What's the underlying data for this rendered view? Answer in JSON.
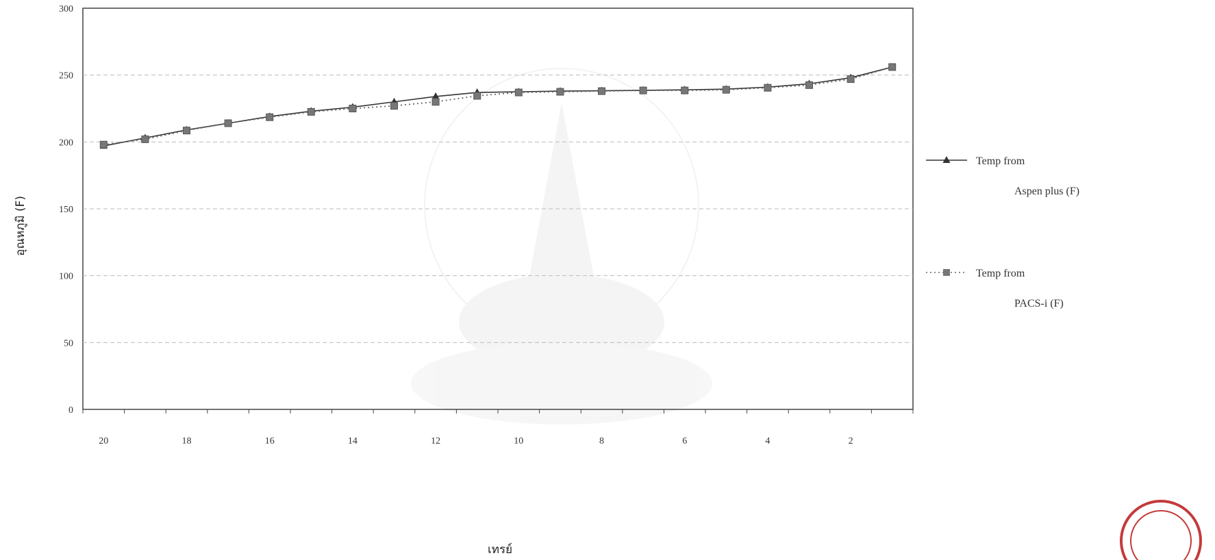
{
  "chart_data": {
    "type": "line",
    "xlabel": "เทรย์",
    "ylabel": "อุณหภูมิ (F)",
    "ylim": [
      0,
      300
    ],
    "yticks": [
      0,
      50,
      100,
      150,
      200,
      250,
      300
    ],
    "xticks": [
      20,
      18,
      16,
      14,
      12,
      10,
      8,
      6,
      4,
      2
    ],
    "x_reversed": true,
    "grid": true,
    "legend_position": "right",
    "x": [
      20,
      19,
      18,
      17,
      16,
      15,
      14,
      13,
      12,
      11,
      10,
      9,
      8,
      7,
      6,
      5,
      4,
      3,
      2,
      1
    ],
    "series": [
      {
        "name_lines": [
          "Temp from",
          "Aspen plus (F)"
        ],
        "marker": "triangle",
        "line_style": "solid",
        "color": "#333333",
        "values": [
          197,
          203,
          209,
          214,
          219,
          223,
          226,
          230,
          234,
          237,
          237.5,
          238,
          238.3,
          238.6,
          239,
          239.5,
          241,
          243.5,
          248,
          256
        ]
      },
      {
        "name_lines": [
          "Temp from",
          "PACS-i (F)"
        ],
        "marker": "square",
        "line_style": "dotted",
        "color": "#666666",
        "values": [
          198,
          202,
          208.5,
          214,
          218.5,
          222.5,
          225,
          227,
          230,
          234.5,
          237,
          237.5,
          238,
          238.5,
          238.5,
          239,
          240.5,
          242.5,
          247,
          256
        ]
      }
    ]
  }
}
